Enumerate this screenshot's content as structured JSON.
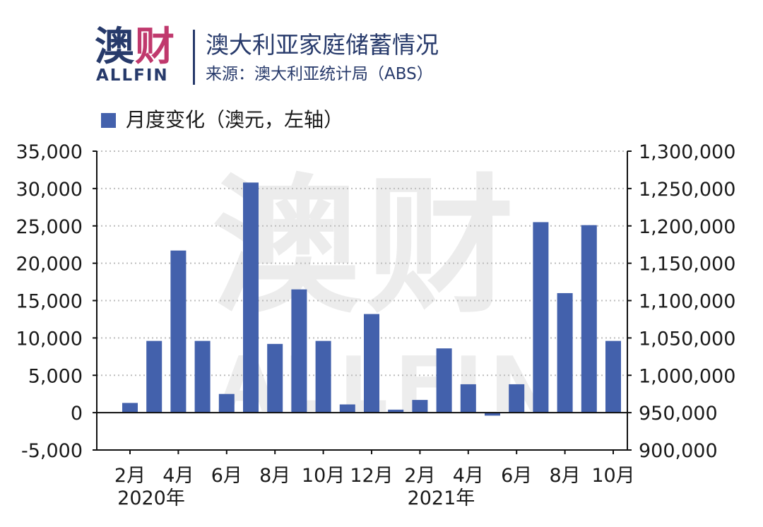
{
  "header": {
    "logo_cn_main": "澳",
    "logo_cn_accent": "财",
    "logo_en": "ALLFIN",
    "title": "澳大利亚家庭储蓄情况",
    "subtitle": "来源：澳大利亚统计局（ABS）"
  },
  "watermark": {
    "cn": "澳财",
    "en": "ALLFIN"
  },
  "colors": {
    "bar": "#4361ac",
    "brand": "#273a6b",
    "accent": "#c0396d",
    "grid": "#bdbdbd"
  },
  "chart_data": {
    "type": "bar",
    "title": "澳大利亚家庭储蓄情况",
    "legend": [
      {
        "name": "月度变化（澳元，左轴）",
        "color": "#4361ac"
      }
    ],
    "legend_position": "top-left",
    "series": [
      {
        "name": "月度变化（澳元，左轴）",
        "axis": "left",
        "values": [
          1300,
          9600,
          21700,
          9600,
          2500,
          30800,
          9200,
          16500,
          9600,
          1100,
          13200,
          400,
          1700,
          8600,
          3800,
          -400,
          3800,
          25500,
          16000,
          25100,
          9600
        ]
      }
    ],
    "categories": [
      "2020-02",
      "2020-03",
      "2020-04",
      "2020-05",
      "2020-06",
      "2020-07",
      "2020-08",
      "2020-09",
      "2020-10",
      "2020-11",
      "2020-12",
      "2021-01",
      "2021-02",
      "2021-03",
      "2021-04",
      "2021-05",
      "2021-06",
      "2021-07",
      "2021-08",
      "2021-09",
      "2021-10"
    ],
    "x_tick_labels": [
      {
        "index": 0,
        "label": "2月"
      },
      {
        "index": 2,
        "label": "4月"
      },
      {
        "index": 4,
        "label": "6月"
      },
      {
        "index": 6,
        "label": "8月"
      },
      {
        "index": 8,
        "label": "10月"
      },
      {
        "index": 10,
        "label": "12月"
      },
      {
        "index": 12,
        "label": "2月"
      },
      {
        "index": 14,
        "label": "4月"
      },
      {
        "index": 16,
        "label": "6月"
      },
      {
        "index": 18,
        "label": "8月"
      },
      {
        "index": 20,
        "label": "10月"
      }
    ],
    "x_year_labels": [
      {
        "index": 0,
        "label": "2020年"
      },
      {
        "index": 12,
        "label": "2021年"
      }
    ],
    "y_left": {
      "range": [
        -5000,
        35000
      ],
      "ticks": [
        35000,
        30000,
        25000,
        20000,
        15000,
        10000,
        5000,
        0,
        -5000
      ],
      "tick_labels": [
        "35,000",
        "30,000",
        "25,000",
        "20,000",
        "15,000",
        "10,000",
        "5,000",
        "0",
        "-5,000"
      ]
    },
    "y_right": {
      "range": [
        900000,
        1300000
      ],
      "ticks": [
        1300000,
        1250000,
        1200000,
        1150000,
        1100000,
        1050000,
        1000000,
        950000,
        900000
      ],
      "tick_labels": [
        "1,300,000",
        "1,250,000",
        "1,200,000",
        "1,150,000",
        "1,100,000",
        "1,050,000",
        "1,000,000",
        "950,000",
        "900,000"
      ]
    },
    "grid": true
  }
}
